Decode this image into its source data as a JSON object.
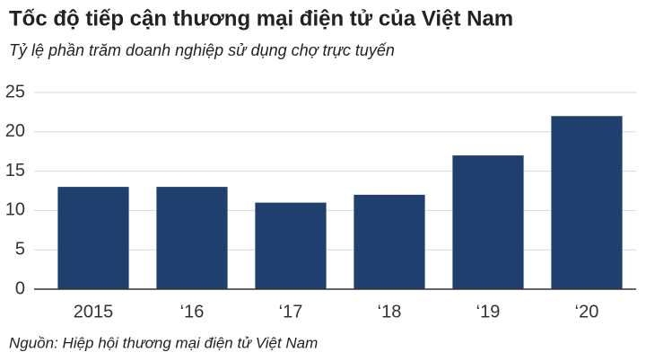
{
  "chart_data": {
    "type": "bar",
    "title": "Tốc độ tiếp cận thương mại điện tử của Việt Nam",
    "subtitle": "Tỷ lệ phần trăm doanh nghiệp sử dụng chợ trực tuyến",
    "source": "Nguồn: Hiệp hội thương mại điện tử Việt Nam",
    "categories": [
      "2015",
      "‘16",
      "‘17",
      "‘18",
      "‘19",
      "‘20"
    ],
    "values": [
      13,
      13,
      11,
      12,
      17,
      22
    ],
    "color": "#1f3f6e",
    "ylim": [
      0,
      25
    ],
    "yticks": [
      0,
      5,
      10,
      15,
      20,
      25
    ],
    "grid": true
  }
}
